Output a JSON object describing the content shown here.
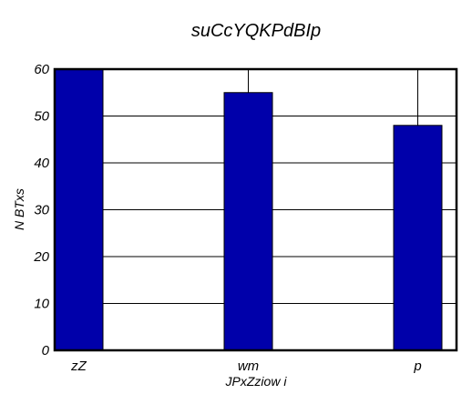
{
  "chart_data": {
    "type": "bar",
    "title": "suCcYQKPdBIp",
    "xlabel": "JPxZziow i",
    "ylabel": "N BTxs",
    "categories": [
      "zZ",
      "wm",
      "p"
    ],
    "values": [
      60,
      55,
      48
    ],
    "error_upper": [
      60,
      60,
      60
    ],
    "ylim": [
      0,
      60
    ],
    "yticks": [
      "0",
      "10",
      "20",
      "30",
      "40",
      "50",
      "60"
    ],
    "grid": true,
    "legend": "none",
    "bar_color": "#0000aa"
  }
}
